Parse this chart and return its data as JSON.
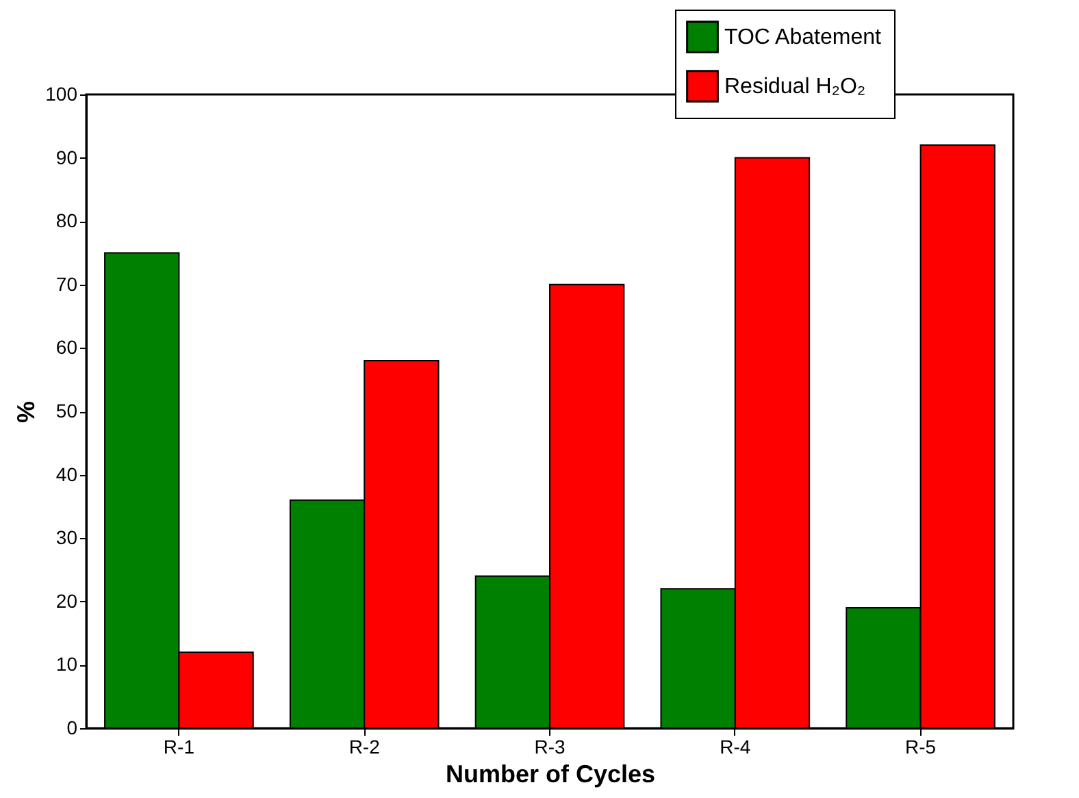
{
  "chart_data": {
    "type": "bar",
    "xlabel": "Number of Cycles",
    "ylabel": "%",
    "categories": [
      "R-1",
      "R-2",
      "R-3",
      "R-4",
      "R-5"
    ],
    "series": [
      {
        "name": "TOC Abatement",
        "color": "#008000",
        "values": [
          75,
          36,
          24,
          22,
          19
        ]
      },
      {
        "name": "Residual H₂O₂",
        "color": "#ff0000",
        "values": [
          12,
          58,
          70,
          90,
          92
        ]
      }
    ],
    "ylim": [
      0,
      100
    ],
    "yticks": [
      0,
      10,
      20,
      30,
      40,
      50,
      60,
      70,
      80,
      90,
      100
    ],
    "grid": false,
    "legend": "top right"
  }
}
